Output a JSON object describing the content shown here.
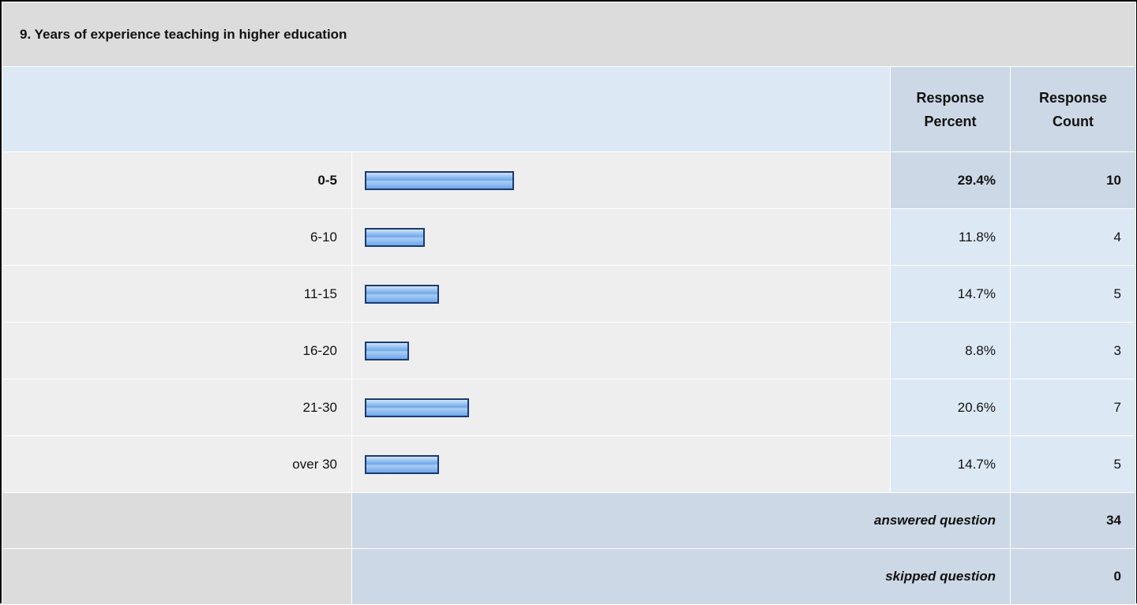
{
  "chart_data": {
    "type": "bar",
    "title": "9. Years of experience teaching in higher education",
    "headers": [
      "Response Percent",
      "Response Count"
    ],
    "categories": [
      "0-5",
      "6-10",
      "11-15",
      "16-20",
      "21-30",
      "over 30"
    ],
    "values": [
      29.4,
      11.8,
      14.7,
      8.8,
      20.6,
      14.7
    ],
    "value_labels": [
      "29.4%",
      "11.8%",
      "14.7%",
      "8.8%",
      "20.6%",
      "14.7%"
    ],
    "counts": [
      10,
      4,
      5,
      3,
      7,
      5
    ],
    "summary": [
      {
        "label": "answered question",
        "value": 34
      },
      {
        "label": "skipped question",
        "value": 0
      }
    ],
    "color": "#6ea8ea",
    "xlim": [
      0,
      100
    ]
  }
}
